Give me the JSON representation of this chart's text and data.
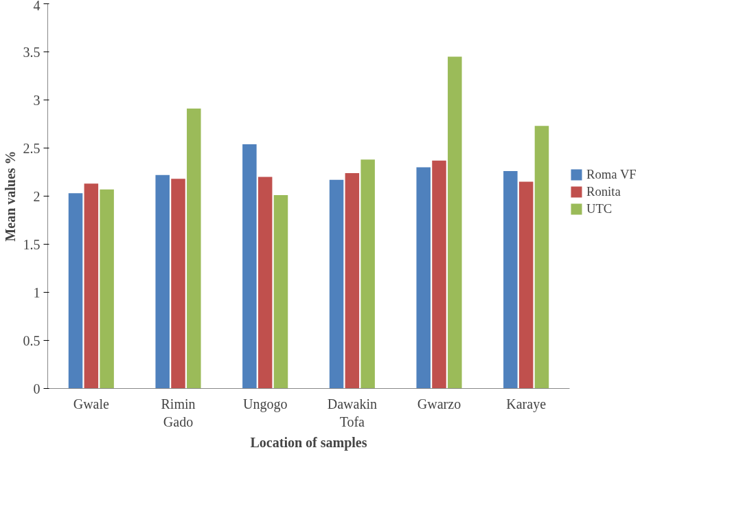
{
  "chart_data": {
    "type": "bar",
    "xlabel": "Location of samples",
    "ylabel": "Mean values %",
    "categories": [
      "Gwale",
      "Rimin Gado",
      "Ungogo",
      "Dawakin Tofa",
      "Gwarzo",
      "Karaye"
    ],
    "series": [
      {
        "name": "Roma VF",
        "color": "#4f81bd",
        "values": [
          2.03,
          2.22,
          2.54,
          2.17,
          2.3,
          2.26
        ]
      },
      {
        "name": "Ronita",
        "color": "#c0504d",
        "values": [
          2.13,
          2.18,
          2.2,
          2.24,
          2.37,
          2.15
        ]
      },
      {
        "name": "UTC",
        "color": "#9bbb59",
        "values": [
          2.07,
          2.91,
          2.01,
          2.38,
          3.45,
          2.73
        ]
      }
    ],
    "ylim": [
      0,
      4
    ],
    "yticks": [
      0,
      0.5,
      1,
      1.5,
      2,
      2.5,
      3,
      3.5,
      4
    ],
    "grid": false,
    "legend": "right"
  }
}
